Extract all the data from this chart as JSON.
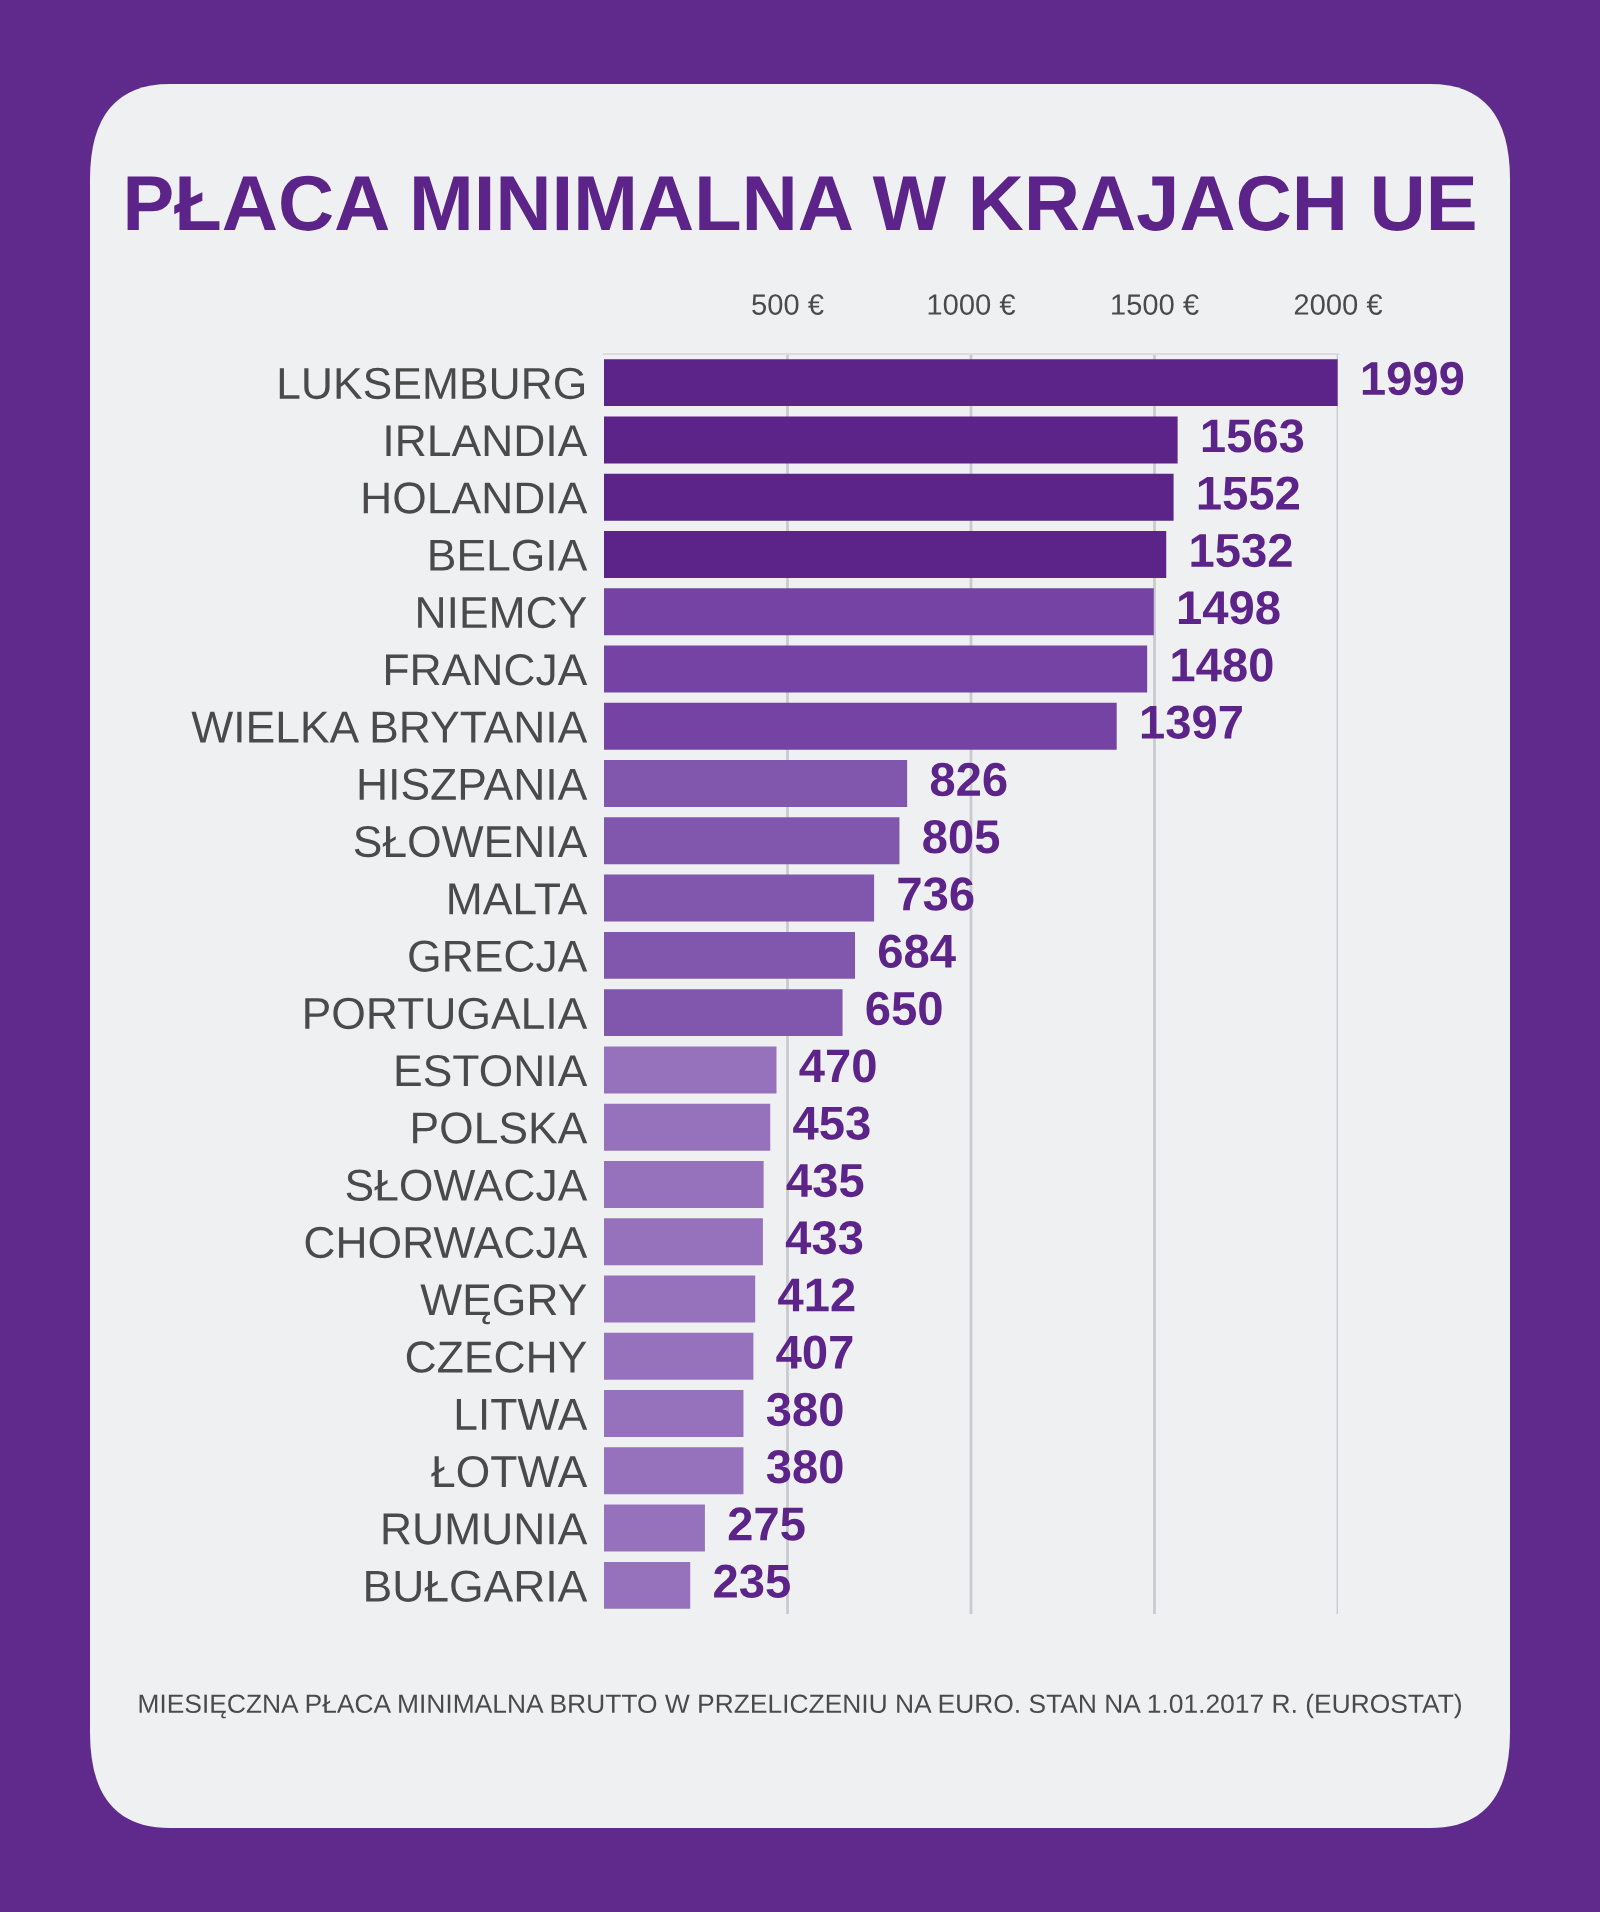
{
  "chart_data": {
    "type": "bar",
    "orientation": "horizontal",
    "title": "PŁACA MINIMALNA W KRAJACH UE",
    "categories": [
      "LUKSEMBURG",
      "IRLANDIA",
      "HOLANDIA",
      "BELGIA",
      "NIEMCY",
      "FRANCJA",
      "WIELKA BRYTANIA",
      "HISZPANIA",
      "SŁOWENIA",
      "MALTA",
      "GRECJA",
      "PORTUGALIA",
      "ESTONIA",
      "POLSKA",
      "SŁOWACJA",
      "CHORWACJA",
      "WĘGRY",
      "CZECHY",
      "LITWA",
      "ŁOTWA",
      "RUMUNIA",
      "BUŁGARIA"
    ],
    "values": [
      1999,
      1563,
      1552,
      1532,
      1498,
      1480,
      1397,
      826,
      805,
      736,
      684,
      650,
      470,
      453,
      435,
      433,
      412,
      407,
      380,
      380,
      275,
      235
    ],
    "colors": [
      "#5c2389",
      "#5c2389",
      "#5c2389",
      "#5c2389",
      "#7443a3",
      "#7443a3",
      "#7443a3",
      "#8157ad",
      "#8157ad",
      "#8157ad",
      "#8157ad",
      "#8157ad",
      "#9672bd",
      "#9672bd",
      "#9672bd",
      "#9672bd",
      "#9672bd",
      "#9672bd",
      "#9672bd",
      "#9672bd",
      "#9672bd",
      "#9672bd"
    ],
    "xlim": [
      0,
      2000
    ],
    "xticks": [
      {
        "value": 500,
        "label": "500 €"
      },
      {
        "value": 1000,
        "label": "1000 €"
      },
      {
        "value": 1500,
        "label": "1500 €"
      },
      {
        "value": 2000,
        "label": "2000 €"
      }
    ],
    "grid": "x",
    "data_labels": true,
    "annotations": [
      "MIESIĘCZNA PŁACA MINIMALNA BRUTTO W PRZELICZENIU NA EURO. STAN NA 1.01.2017 R. (EUROSTAT)"
    ]
  }
}
